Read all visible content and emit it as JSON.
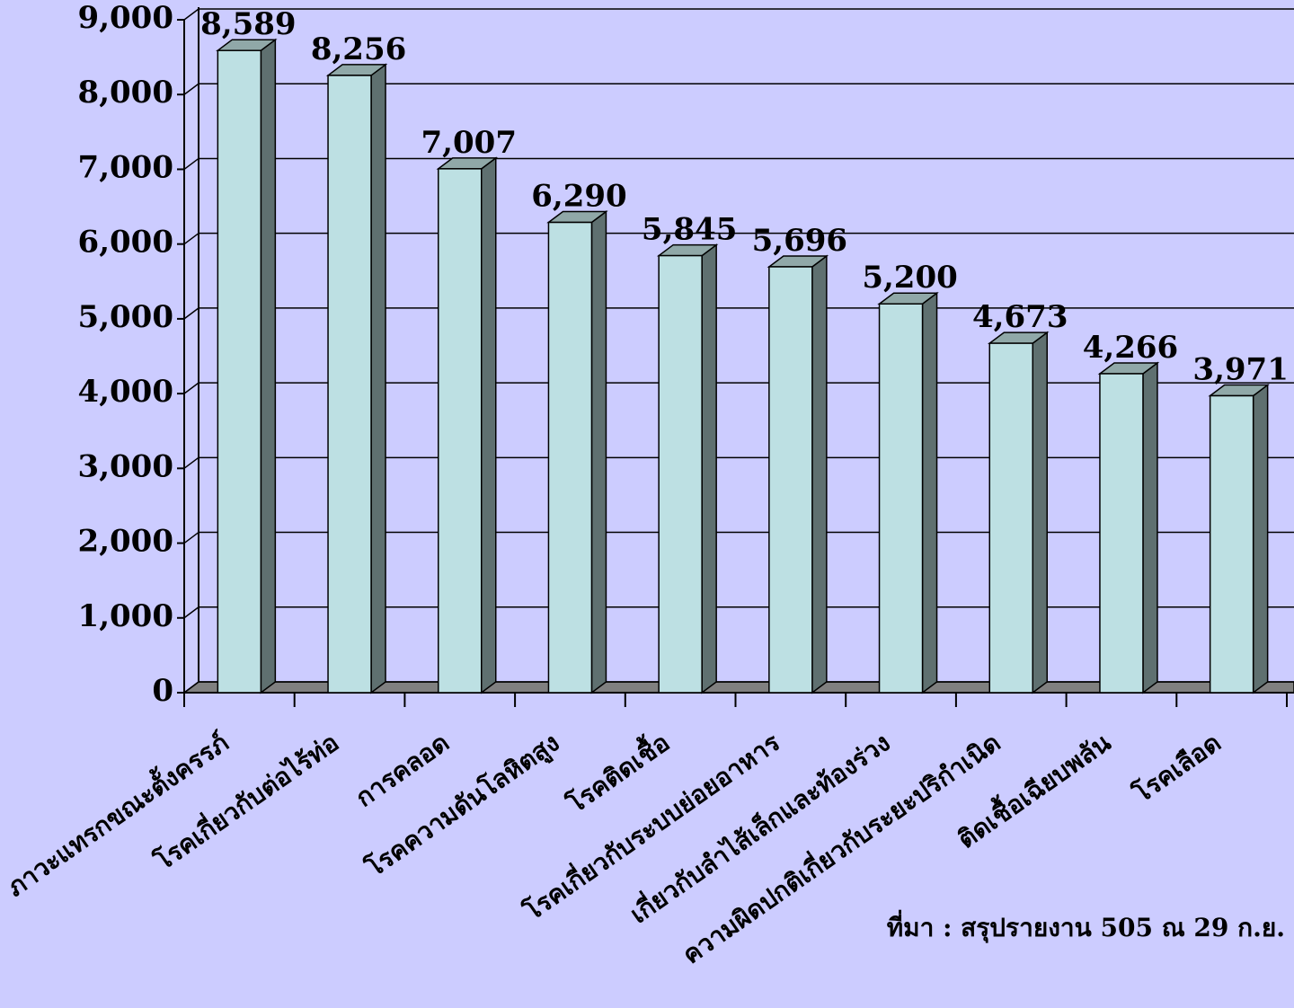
{
  "chart_data": {
    "type": "bar3d",
    "categories": [
      "ภาวะแทรกขณะตั้งครรภ์",
      "โรคเกี่ยวกับต่อไร้ท่อ",
      "การคลอด",
      "โรคความดันโลหิตสูง",
      "โรคติดเชื้อ",
      "โรคเกี่ยวกับระบบย่อยอาหาร",
      "เกี่ยวกับลำไส้เล็กและท้องร่วง",
      "ความผิดปกติเกี่ยวกับระยะปริกำเนิด",
      "ติดเชื้อเฉียบพลัน",
      "โรคเลือด"
    ],
    "values": [
      8589,
      8256,
      7007,
      6290,
      5845,
      5696,
      5200,
      4673,
      4266,
      3971
    ],
    "value_labels": [
      "8,589",
      "8,256",
      "7,007",
      "6,290",
      "5,845",
      "5,696",
      "5,200",
      "4,673",
      "4,266",
      "3,971"
    ],
    "color": "#bde0e3",
    "ylim": [
      0,
      9000
    ],
    "yticks": [
      0,
      {
        "value": 1000,
        "label": "1,000"
      },
      {
        "value": 2000,
        "label": "2,000"
      },
      {
        "value": 3000,
        "label": "3,000"
      },
      {
        "value": 4000,
        "label": "4,000"
      },
      {
        "value": 5000,
        "label": "5,000"
      },
      {
        "value": 6000,
        "label": "6,000"
      },
      {
        "value": 7000,
        "label": "7,000"
      },
      {
        "value": 8000,
        "label": "8,000"
      },
      {
        "value": 9000,
        "label": "9,000"
      }
    ],
    "grid": true,
    "annotation": "ที่มา : สรุปรายงาน 505 ณ 29 ก.ย."
  }
}
